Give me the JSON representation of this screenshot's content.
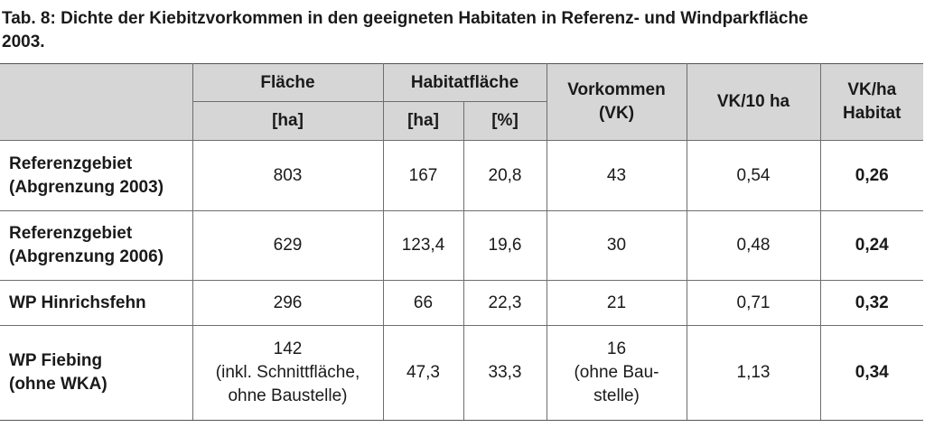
{
  "caption": {
    "line1": "Tab. 8: Dichte der Kiebitzvorkommen in den geeigneten Habitaten in Referenz- und Windparkfläche",
    "line2": "2003."
  },
  "header": {
    "flaeche": "Fläche",
    "flaeche_unit": "[ha]",
    "habitat": "Habitatfläche",
    "habitat_unit_ha": "[ha]",
    "habitat_unit_pct": "[%]",
    "vorkommen_line1": "Vorkommen",
    "vorkommen_line2": "(VK)",
    "vk10": "VK/10 ha",
    "vkha_line1": "VK/ha",
    "vkha_line2": "Habitat"
  },
  "rows": [
    {
      "label_line1": "Referenzgebiet",
      "label_line2": "(Abgrenzung 2003)",
      "flaeche": [
        "803"
      ],
      "habitat_ha": "167",
      "habitat_pct": "20,8",
      "vk": [
        "43"
      ],
      "vk10": "0,54",
      "vkha": "0,26"
    },
    {
      "label_line1": "Referenzgebiet",
      "label_line2": "(Abgrenzung 2006)",
      "flaeche": [
        "629"
      ],
      "habitat_ha": "123,4",
      "habitat_pct": "19,6",
      "vk": [
        "30"
      ],
      "vk10": "0,48",
      "vkha": "0,24"
    },
    {
      "label_line1": "WP Hinrichsfehn",
      "label_line2": "",
      "flaeche": [
        "296"
      ],
      "habitat_ha": "66",
      "habitat_pct": "22,3",
      "vk": [
        "21"
      ],
      "vk10": "0,71",
      "vkha": "0,32"
    },
    {
      "label_line1": "WP Fiebing",
      "label_line2": "(ohne WKA)",
      "flaeche": [
        "142",
        "(inkl. Schnittfläche,",
        "ohne Baustelle)"
      ],
      "habitat_ha": "47,3",
      "habitat_pct": "33,3",
      "vk": [
        "16",
        "(ohne Bau-",
        "stelle)"
      ],
      "vk10": "1,13",
      "vkha": "0,34"
    }
  ]
}
